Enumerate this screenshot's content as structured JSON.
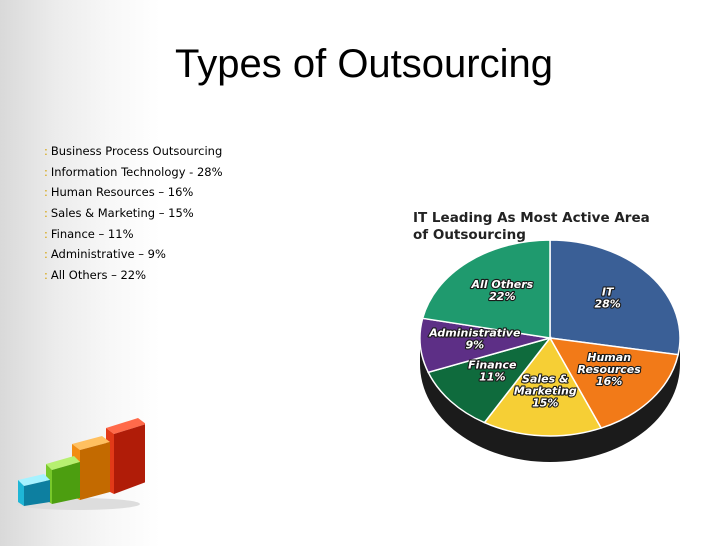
{
  "slide": {
    "title": "Types of Outsourcing",
    "bullet_marker": ":",
    "bullets": [
      "Business Process Outsourcing",
      "Information Technology - 28%",
      "Human Resources – 16%",
      "Sales & Marketing – 15%",
      "Finance – 11%",
      "Administrative – 9%",
      "All Others – 22%"
    ]
  },
  "chart_data": {
    "type": "pie",
    "title": "IT Leading As Most Active Area of Outsourcing",
    "slices": [
      {
        "label": "IT",
        "value": 28,
        "value_label": "28%",
        "color": "#3a5f96"
      },
      {
        "label": "Human Resources",
        "value": 16,
        "value_label": "16%",
        "color": "#f27a18"
      },
      {
        "label": "Sales & Marketing",
        "value": 15,
        "value_label": "15%",
        "color": "#f6cf35"
      },
      {
        "label": "Finance",
        "value": 11,
        "value_label": "11%",
        "color": "#0f6b3d"
      },
      {
        "label": "Administrative",
        "value": 9,
        "value_label": "9%",
        "color": "#5d2f86"
      },
      {
        "label": "All Others",
        "value": 22,
        "value_label": "22%",
        "color": "#1f9a6e"
      }
    ]
  }
}
